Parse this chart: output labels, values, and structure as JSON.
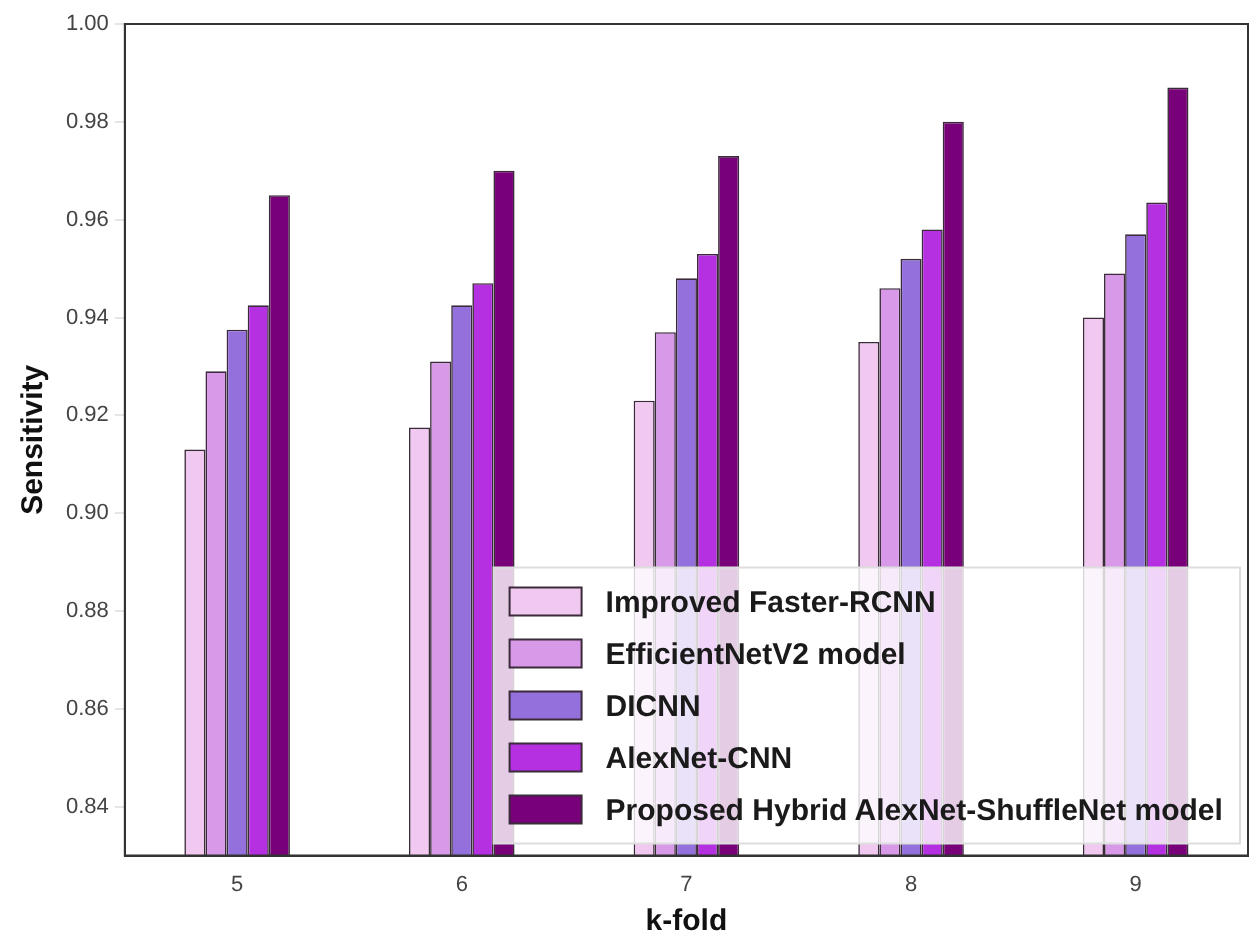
{
  "chart_data": {
    "type": "bar",
    "xlabel": "k-fold",
    "ylabel": "Sensitivity",
    "categories": [
      "5",
      "6",
      "7",
      "8",
      "9"
    ],
    "series": [
      {
        "name": "Improved Faster-RCNN",
        "color": "#f0c8f0",
        "values": [
          0.913,
          0.9175,
          0.923,
          0.935,
          0.94
        ]
      },
      {
        "name": "EfficientNetV2 model",
        "color": "#d89ae8",
        "values": [
          0.929,
          0.931,
          0.937,
          0.946,
          0.949
        ]
      },
      {
        "name": "DICNN",
        "color": "#9370db",
        "values": [
          0.9375,
          0.9425,
          0.948,
          0.952,
          0.957
        ]
      },
      {
        "name": "AlexNet-CNN",
        "color": "#b530e0",
        "values": [
          0.9425,
          0.947,
          0.953,
          0.958,
          0.9635
        ]
      },
      {
        "name": "Proposed Hybrid AlexNet-ShuffleNet model",
        "color": "#780078",
        "values": [
          0.965,
          0.97,
          0.973,
          0.98,
          0.987
        ]
      }
    ],
    "ylim": [
      0.83,
      1.0
    ],
    "yticks": [
      0.84,
      0.86,
      0.88,
      {
        "value": 0.9,
        "label": "0.90"
      },
      0.92,
      0.94,
      0.96,
      0.98,
      {
        "value": 1,
        "label": "1.00"
      }
    ],
    "grid": false,
    "legend": "bottom right"
  }
}
